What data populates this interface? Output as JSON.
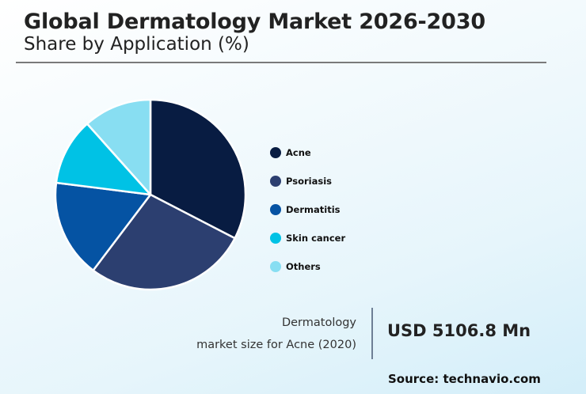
{
  "header": {
    "title": "Global Dermatology Market 2026-2030",
    "subtitle": "Share by Application (%)"
  },
  "legend": {
    "items": [
      {
        "label": "Acne",
        "color": "#081c42"
      },
      {
        "label": "Psoriasis",
        "color": "#2c3f70"
      },
      {
        "label": "Dermatitis",
        "color": "#0553a3"
      },
      {
        "label": "Skin cancer",
        "color": "#00c2e5"
      },
      {
        "label": "Others",
        "color": "#88def2"
      }
    ]
  },
  "stat": {
    "label_line1": "Dermatology",
    "label_line2": "market size for Acne (2020)",
    "value": "USD 5106.8 Mn"
  },
  "footer": {
    "source": "Source: technavio.com"
  },
  "chart_data": {
    "type": "pie",
    "title": "Global Dermatology Market 2026-2030",
    "subtitle": "Share by Application (%)",
    "categories": [
      "Acne",
      "Psoriasis",
      "Dermatitis",
      "Skin cancer",
      "Others"
    ],
    "values": [
      32.6,
      27.7,
      16.7,
      11.4,
      11.6
    ],
    "colors": [
      "#081c42",
      "#2c3f70",
      "#0553a3",
      "#00c2e5",
      "#88def2"
    ],
    "start_angle": "top (12 o'clock), clockwise",
    "legend_position": "right",
    "annotation": "Dermatology market size for Acne (2020): USD 5106.8 Mn"
  }
}
